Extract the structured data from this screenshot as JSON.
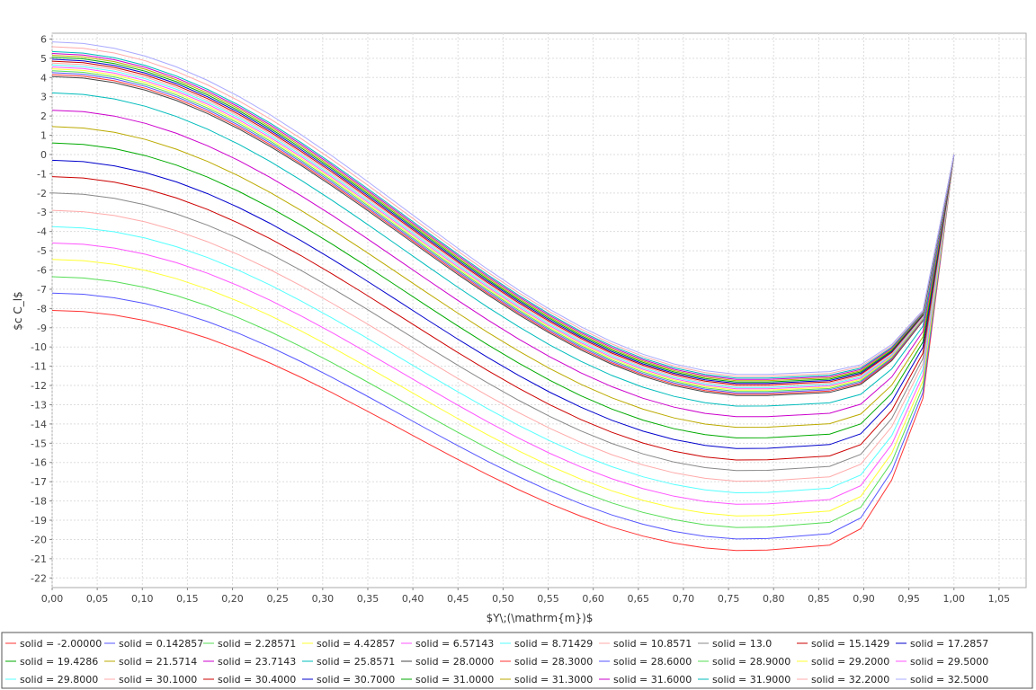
{
  "chart_data": {
    "type": "line",
    "title": "",
    "xlabel": "$Y\\;(\\mathrm{m})$",
    "ylabel": "$c C_l$",
    "xlim": [
      0.0,
      1.08
    ],
    "ylim": [
      -22.5,
      6.3
    ],
    "xticks": [
      "0,00",
      "0,05",
      "0,10",
      "0,15",
      "0,20",
      "0,25",
      "0,30",
      "0,35",
      "0,40",
      "0,45",
      "0,50",
      "0,55",
      "0,60",
      "0,65",
      "0,70",
      "0,75",
      "0,80",
      "0,85",
      "0,90",
      "0,95",
      "1,00",
      "1,05"
    ],
    "yticks": [
      "6",
      "5",
      "4",
      "3",
      "2",
      "1",
      "0",
      "-1",
      "-2",
      "-3",
      "-4",
      "-5",
      "-6",
      "-7",
      "-8",
      "-9",
      "-10",
      "-11",
      "-12",
      "-13",
      "-14",
      "-15",
      "-16",
      "-17",
      "-18",
      "-19",
      "-20",
      "-21",
      "-22"
    ],
    "grid": true,
    "legend_position": "bottom",
    "x": [
      0.0,
      0.0345,
      0.069,
      0.1034,
      0.1379,
      0.1724,
      0.2069,
      0.2414,
      0.2759,
      0.3103,
      0.3448,
      0.3793,
      0.4138,
      0.4483,
      0.4828,
      0.5172,
      0.5517,
      0.5862,
      0.6207,
      0.6552,
      0.6897,
      0.7241,
      0.7586,
      0.7931,
      0.8276,
      0.8621,
      0.8966,
      0.931,
      0.9655,
      1.0
    ],
    "series": [
      {
        "name": "solid = -2.00000",
        "color": "#ff3333",
        "start": -8.1,
        "min": -20.6
      },
      {
        "name": "solid = 0.142857",
        "color": "#5555ff",
        "start": -7.2,
        "min": -20.0
      },
      {
        "name": "solid = 2.28571",
        "color": "#55dd55",
        "start": -6.35,
        "min": -19.4
      },
      {
        "name": "solid = 4.42857",
        "color": "#ffff33",
        "start": -5.45,
        "min": -18.8
      },
      {
        "name": "solid = 6.57143",
        "color": "#ff55ff",
        "start": -4.6,
        "min": -18.2
      },
      {
        "name": "solid = 8.71429",
        "color": "#55ffff",
        "start": -3.75,
        "min": -17.6
      },
      {
        "name": "solid = 10.8571",
        "color": "#ffaaaa",
        "start": -2.9,
        "min": -17.0
      },
      {
        "name": "solid = 13.0",
        "color": "#888888",
        "start": -2.0,
        "min": -16.45
      },
      {
        "name": "solid = 15.1429",
        "color": "#cc0000",
        "start": -1.15,
        "min": -15.9
      },
      {
        "name": "solid = 17.2857",
        "color": "#0000cc",
        "start": -0.3,
        "min": -15.3
      },
      {
        "name": "solid = 19.4286",
        "color": "#00aa00",
        "start": 0.6,
        "min": -14.75
      },
      {
        "name": "solid = 21.5714",
        "color": "#bbaa00",
        "start": 1.45,
        "min": -14.2
      },
      {
        "name": "solid = 23.7143",
        "color": "#cc00cc",
        "start": 2.3,
        "min": -13.65
      },
      {
        "name": "solid = 25.8571",
        "color": "#00bbbb",
        "start": 3.2,
        "min": -13.1
      },
      {
        "name": "solid = 28.0000",
        "color": "#444444",
        "start": 4.05,
        "min": -12.55
      },
      {
        "name": "solid = 28.3000",
        "color": "#ff3333",
        "start": 4.15,
        "min": -12.48
      },
      {
        "name": "solid = 28.6000",
        "color": "#5555ff",
        "start": 4.25,
        "min": -12.41
      },
      {
        "name": "solid = 28.9000",
        "color": "#55dd55",
        "start": 4.35,
        "min": -12.34
      },
      {
        "name": "solid = 29.2000",
        "color": "#ffff33",
        "start": 4.45,
        "min": -12.27
      },
      {
        "name": "solid = 29.5000",
        "color": "#ff55ff",
        "start": 4.55,
        "min": -12.2
      },
      {
        "name": "solid = 29.8000",
        "color": "#55ffff",
        "start": 4.65,
        "min": -12.13
      },
      {
        "name": "solid = 30.1000",
        "color": "#ffaaaa",
        "start": 4.75,
        "min": -12.06
      },
      {
        "name": "solid = 30.4000",
        "color": "#cc0000",
        "start": 4.85,
        "min": -11.99
      },
      {
        "name": "solid = 30.7000",
        "color": "#0000cc",
        "start": 4.95,
        "min": -11.92
      },
      {
        "name": "solid = 31.0000",
        "color": "#00aa00",
        "start": 5.05,
        "min": -11.85
      },
      {
        "name": "solid = 31.3000",
        "color": "#bbaa00",
        "start": 5.15,
        "min": -11.78
      },
      {
        "name": "solid = 31.6000",
        "color": "#cc00cc",
        "start": 5.25,
        "min": -11.71
      },
      {
        "name": "solid = 31.9000",
        "color": "#00bbbb",
        "start": 5.35,
        "min": -11.64
      },
      {
        "name": "solid = 32.2000",
        "color": "#ffaaaa",
        "start": 5.6,
        "min": -11.55
      },
      {
        "name": "solid = 32.5000",
        "color": "#aaaaff",
        "start": 5.85,
        "min": -11.45
      }
    ],
    "end_values": {
      "x": 1.0,
      "y": 0.0
    },
    "near_end_values": {
      "x": 0.9655,
      "y_range": [
        -12.7,
        -8.1
      ]
    }
  }
}
